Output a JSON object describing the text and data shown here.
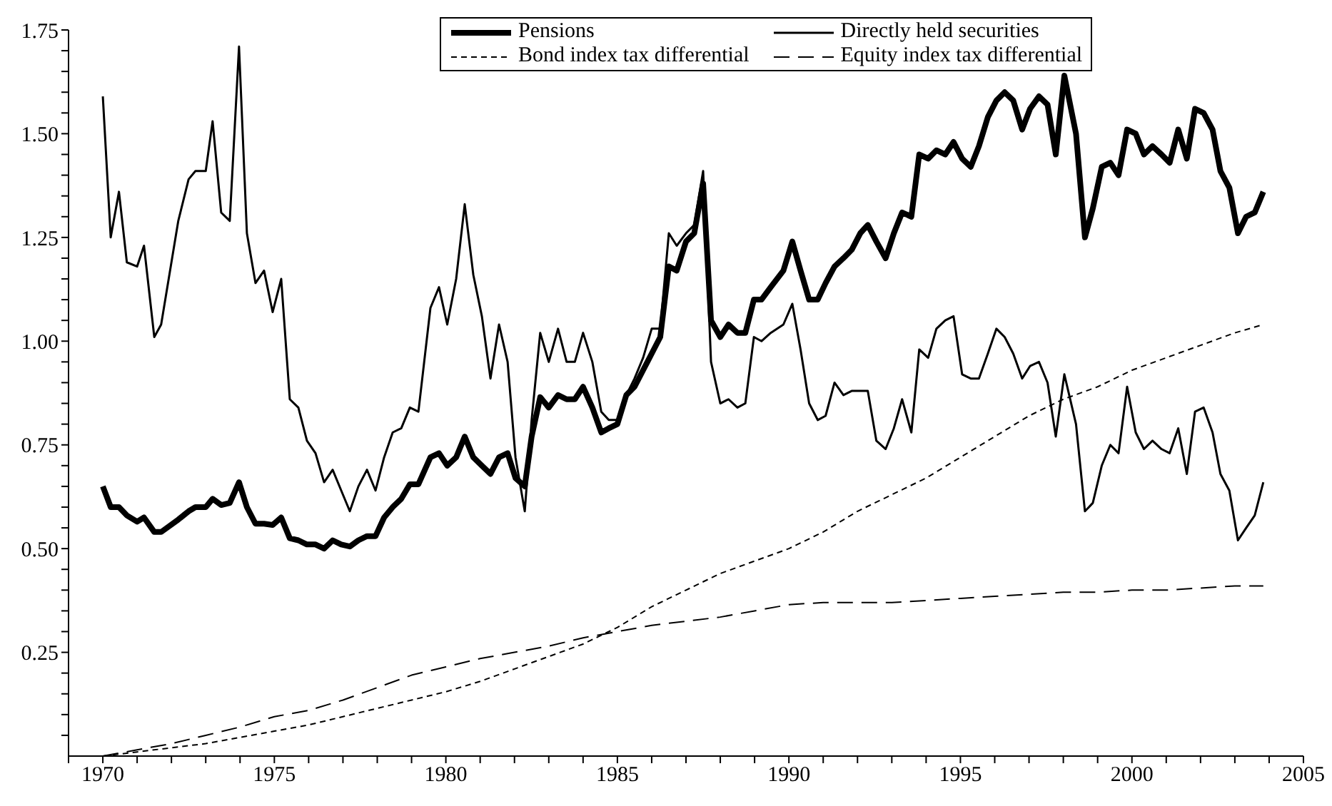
{
  "chart_data": {
    "type": "line",
    "xlim": [
      1969,
      2005
    ],
    "xticks": [
      {
        "value": 1969,
        "label": null
      },
      1970,
      {
        "value": 1971,
        "label": null
      },
      {
        "value": 1972,
        "label": null
      },
      {
        "value": 1973,
        "label": null
      },
      {
        "value": 1974,
        "label": null
      },
      1975,
      {
        "value": 1976,
        "label": null
      },
      {
        "value": 1977,
        "label": null
      },
      {
        "value": 1978,
        "label": null
      },
      {
        "value": 1979,
        "label": null
      },
      1980,
      {
        "value": 1981,
        "label": null
      },
      {
        "value": 1982,
        "label": null
      },
      {
        "value": 1983,
        "label": null
      },
      {
        "value": 1984,
        "label": null
      },
      1985,
      {
        "value": 1986,
        "label": null
      },
      {
        "value": 1987,
        "label": null
      },
      {
        "value": 1988,
        "label": null
      },
      {
        "value": 1989,
        "label": null
      },
      1990,
      {
        "value": 1991,
        "label": null
      },
      {
        "value": 1992,
        "label": null
      },
      {
        "value": 1993,
        "label": null
      },
      {
        "value": 1994,
        "label": null
      },
      1995,
      {
        "value": 1996,
        "label": null
      },
      {
        "value": 1997,
        "label": null
      },
      {
        "value": 1998,
        "label": null
      },
      {
        "value": 1999,
        "label": null
      },
      2000,
      {
        "value": 2001,
        "label": null
      },
      {
        "value": 2002,
        "label": null
      },
      {
        "value": 2003,
        "label": null
      },
      {
        "value": 2004,
        "label": null
      },
      2005
    ],
    "ylim": [
      0,
      1.75
    ],
    "yticks": [
      {
        "value": 0.05,
        "label": null
      },
      {
        "value": 0.1,
        "label": null
      },
      {
        "value": 0.15,
        "label": null
      },
      {
        "value": 0.2,
        "label": null
      },
      0.25,
      {
        "value": 0.3,
        "label": null
      },
      {
        "value": 0.35,
        "label": null
      },
      {
        "value": 0.4,
        "label": null
      },
      {
        "value": 0.45,
        "label": null
      },
      {
        "value": 0.5,
        "label": "0.50"
      },
      {
        "value": 0.55,
        "label": null
      },
      {
        "value": 0.6,
        "label": null
      },
      {
        "value": 0.65,
        "label": null
      },
      {
        "value": 0.7,
        "label": null
      },
      0.75,
      {
        "value": 0.8,
        "label": null
      },
      {
        "value": 0.85,
        "label": null
      },
      {
        "value": 0.9,
        "label": null
      },
      {
        "value": 0.95,
        "label": null
      },
      {
        "value": 1,
        "label": "1.00"
      },
      {
        "value": 1.05,
        "label": null
      },
      {
        "value": 1.1,
        "label": null
      },
      {
        "value": 1.15,
        "label": null
      },
      {
        "value": 1.2,
        "label": null
      },
      1.25,
      {
        "value": 1.3,
        "label": null
      },
      {
        "value": 1.35,
        "label": null
      },
      {
        "value": 1.4,
        "label": null
      },
      {
        "value": 1.45,
        "label": null
      },
      {
        "value": 1.5,
        "label": "1.50"
      },
      {
        "value": 1.55,
        "label": null
      },
      {
        "value": 1.6,
        "label": null
      },
      {
        "value": 1.65,
        "label": null
      },
      {
        "value": 1.7,
        "label": null
      },
      1.75
    ],
    "grid": false,
    "legend": "top",
    "marker": "none",
    "series": [
      {
        "name": "Pensions",
        "color": "#000000",
        "line_style": "solid",
        "x": [
          1970,
          1970.23,
          1970.47,
          1970.7,
          1971,
          1971.2,
          1971.5,
          1971.7,
          1972.2,
          1972.5,
          1972.7,
          1973,
          1973.2,
          1973.45,
          1973.7,
          1973.97,
          1974.2,
          1974.45,
          1974.7,
          1974.95,
          1975.2,
          1975.45,
          1975.7,
          1975.95,
          1976.2,
          1976.45,
          1976.7,
          1976.95,
          1977.2,
          1977.45,
          1977.7,
          1977.95,
          1978.2,
          1978.45,
          1978.7,
          1978.95,
          1979.2,
          1979.55,
          1979.8,
          1980.04,
          1980.3,
          1980.55,
          1980.8,
          1981.05,
          1981.3,
          1981.55,
          1981.8,
          1982.03,
          1982.3,
          1982.5,
          1982.75,
          1983,
          1983.27,
          1983.52,
          1983.76,
          1984,
          1984.27,
          1984.53,
          1984.75,
          1985,
          1985.26,
          1985.5,
          1985.75,
          1986,
          1986.25,
          1986.5,
          1986.73,
          1987,
          1987.24,
          1987.5,
          1987.73,
          1988,
          1988.24,
          1988.5,
          1988.73,
          1988.98,
          1989.2,
          1989.47,
          1989.84,
          1990.1,
          1990.34,
          1990.59,
          1990.84,
          1991.07,
          1991.33,
          1991.59,
          1991.83,
          1992.08,
          1992.3,
          1992.55,
          1992.82,
          1993.06,
          1993.3,
          1993.57,
          1993.8,
          1994.06,
          1994.3,
          1994.56,
          1994.8,
          1995.05,
          1995.3,
          1995.54,
          1995.8,
          1996.05,
          1996.29,
          1996.54,
          1996.8,
          1997.03,
          1997.29,
          1997.54,
          1997.78,
          1998.03,
          1998.37,
          1998.63,
          1998.86,
          1999.12,
          1999.37,
          1999.61,
          1999.86,
          2000.11,
          2000.35,
          2000.6,
          2000.86,
          2001.1,
          2001.35,
          2001.6,
          2001.84,
          2002.09,
          2002.35,
          2002.58,
          2002.84,
          2003.09,
          2003.33,
          2003.58,
          2003.83
        ],
        "values": [
          0.65,
          0.6,
          0.6,
          0.58,
          0.565,
          0.575,
          0.54,
          0.54,
          0.57,
          0.59,
          0.6,
          0.6,
          0.62,
          0.605,
          0.61,
          0.66,
          0.6,
          0.56,
          0.56,
          0.557,
          0.575,
          0.525,
          0.52,
          0.51,
          0.51,
          0.5,
          0.52,
          0.51,
          0.505,
          0.52,
          0.53,
          0.53,
          0.575,
          0.6,
          0.62,
          0.655,
          0.655,
          0.72,
          0.73,
          0.7,
          0.72,
          0.77,
          0.72,
          0.7,
          0.68,
          0.72,
          0.73,
          0.67,
          0.65,
          0.77,
          0.865,
          0.84,
          0.87,
          0.86,
          0.86,
          0.89,
          0.84,
          0.78,
          0.79,
          0.8,
          0.87,
          0.89,
          0.93,
          0.97,
          1.01,
          1.18,
          1.17,
          1.24,
          1.26,
          1.38,
          1.05,
          1.01,
          1.04,
          1.02,
          1.02,
          1.1,
          1.1,
          1.13,
          1.17,
          1.24,
          1.17,
          1.1,
          1.1,
          1.14,
          1.18,
          1.2,
          1.22,
          1.26,
          1.28,
          1.24,
          1.2,
          1.26,
          1.31,
          1.3,
          1.45,
          1.44,
          1.46,
          1.45,
          1.48,
          1.44,
          1.42,
          1.47,
          1.54,
          1.58,
          1.6,
          1.58,
          1.51,
          1.56,
          1.59,
          1.57,
          1.45,
          1.64,
          1.5,
          1.25,
          1.32,
          1.42,
          1.43,
          1.4,
          1.51,
          1.5,
          1.45,
          1.47,
          1.45,
          1.43,
          1.51,
          1.44,
          1.56,
          1.55,
          1.51,
          1.41,
          1.37,
          1.26,
          1.3,
          1.31,
          1.36
        ]
      },
      {
        "name": "Directly held securities",
        "color": "#000000",
        "line_style": "solid",
        "x": [
          1970,
          1970.23,
          1970.47,
          1970.7,
          1971,
          1971.2,
          1971.5,
          1971.7,
          1972.2,
          1972.5,
          1972.7,
          1973,
          1973.2,
          1973.45,
          1973.7,
          1973.97,
          1974.2,
          1974.45,
          1974.7,
          1974.95,
          1975.2,
          1975.45,
          1975.7,
          1975.95,
          1976.2,
          1976.45,
          1976.7,
          1976.95,
          1977.2,
          1977.45,
          1977.7,
          1977.95,
          1978.2,
          1978.45,
          1978.7,
          1978.95,
          1979.2,
          1979.55,
          1979.8,
          1980.04,
          1980.3,
          1980.55,
          1980.8,
          1981.05,
          1981.3,
          1981.55,
          1981.8,
          1982.03,
          1982.3,
          1982.5,
          1982.75,
          1983,
          1983.27,
          1983.52,
          1983.76,
          1984,
          1984.27,
          1984.53,
          1984.75,
          1985,
          1985.26,
          1985.5,
          1985.75,
          1986,
          1986.25,
          1986.5,
          1986.73,
          1987,
          1987.24,
          1987.5,
          1987.73,
          1988,
          1988.24,
          1988.5,
          1988.73,
          1988.98,
          1989.2,
          1989.47,
          1989.84,
          1990.1,
          1990.34,
          1990.59,
          1990.84,
          1991.07,
          1991.33,
          1991.59,
          1991.83,
          1992.08,
          1992.3,
          1992.55,
          1992.82,
          1993.06,
          1993.3,
          1993.57,
          1993.8,
          1994.06,
          1994.3,
          1994.56,
          1994.8,
          1995.05,
          1995.3,
          1995.54,
          1995.8,
          1996.05,
          1996.29,
          1996.54,
          1996.8,
          1997.03,
          1997.29,
          1997.54,
          1997.78,
          1998.03,
          1998.37,
          1998.63,
          1998.86,
          1999.12,
          1999.37,
          1999.61,
          1999.86,
          2000.11,
          2000.35,
          2000.6,
          2000.86,
          2001.1,
          2001.35,
          2001.6,
          2001.84,
          2002.09,
          2002.35,
          2002.58,
          2002.84,
          2003.09,
          2003.33,
          2003.58,
          2003.83
        ],
        "values": [
          1.59,
          1.25,
          1.36,
          1.19,
          1.18,
          1.23,
          1.01,
          1.04,
          1.29,
          1.39,
          1.41,
          1.41,
          1.53,
          1.31,
          1.29,
          1.71,
          1.26,
          1.14,
          1.17,
          1.07,
          1.15,
          0.86,
          0.84,
          0.76,
          0.73,
          0.66,
          0.69,
          0.64,
          0.59,
          0.65,
          0.69,
          0.64,
          0.72,
          0.78,
          0.79,
          0.84,
          0.83,
          1.08,
          1.13,
          1.04,
          1.15,
          1.33,
          1.16,
          1.06,
          0.91,
          1.04,
          0.95,
          0.72,
          0.59,
          0.81,
          1.02,
          0.95,
          1.03,
          0.95,
          0.95,
          1.02,
          0.95,
          0.83,
          0.81,
          0.81,
          0.87,
          0.91,
          0.96,
          1.03,
          1.03,
          1.26,
          1.23,
          1.26,
          1.28,
          1.41,
          0.95,
          0.85,
          0.86,
          0.84,
          0.85,
          1.01,
          1.0,
          1.02,
          1.04,
          1.09,
          0.98,
          0.85,
          0.81,
          0.82,
          0.9,
          0.87,
          0.88,
          0.88,
          0.88,
          0.76,
          0.74,
          0.79,
          0.86,
          0.78,
          0.98,
          0.96,
          1.03,
          1.05,
          1.06,
          0.92,
          0.91,
          0.91,
          0.97,
          1.03,
          1.01,
          0.97,
          0.91,
          0.94,
          0.95,
          0.9,
          0.77,
          0.92,
          0.8,
          0.59,
          0.61,
          0.7,
          0.75,
          0.73,
          0.89,
          0.78,
          0.74,
          0.76,
          0.74,
          0.73,
          0.79,
          0.68,
          0.83,
          0.84,
          0.78,
          0.68,
          0.64,
          0.52,
          0.55,
          0.58,
          0.66
        ]
      },
      {
        "name": "Bond index tax differential",
        "color": "#000000",
        "line_style": "dotted",
        "x": [
          1970,
          1971,
          1972,
          1973,
          1974,
          1975,
          1976,
          1977,
          1978,
          1979,
          1980,
          1981,
          1982,
          1983,
          1984,
          1985,
          1986,
          1987,
          1988,
          1989,
          1990,
          1991,
          1992,
          1993,
          1994,
          1995,
          1996,
          1997,
          1998,
          1999,
          2000,
          2001,
          2002,
          2003,
          2003.83
        ],
        "values": [
          0,
          0.01,
          0.02,
          0.03,
          0.045,
          0.06,
          0.075,
          0.095,
          0.115,
          0.135,
          0.155,
          0.18,
          0.21,
          0.24,
          0.27,
          0.31,
          0.36,
          0.4,
          0.44,
          0.47,
          0.5,
          0.54,
          0.59,
          0.63,
          0.67,
          0.72,
          0.77,
          0.82,
          0.86,
          0.89,
          0.93,
          0.96,
          0.99,
          1.02,
          1.04
        ]
      },
      {
        "name": "Equity index tax differential",
        "color": "#000000",
        "line_style": "dashed",
        "x": [
          1970,
          1971,
          1972,
          1973,
          1974,
          1975,
          1976,
          1977,
          1978,
          1979,
          1980,
          1981,
          1982,
          1983,
          1984,
          1985,
          1986,
          1987,
          1988,
          1989,
          1990,
          1991,
          1992,
          1993,
          1994,
          1995,
          1996,
          1997,
          1998,
          1999,
          2000,
          2001,
          2002,
          2003,
          2003.83
        ],
        "values": [
          0,
          0.015,
          0.03,
          0.05,
          0.07,
          0.095,
          0.11,
          0.135,
          0.165,
          0.195,
          0.215,
          0.235,
          0.25,
          0.265,
          0.285,
          0.3,
          0.315,
          0.325,
          0.335,
          0.35,
          0.365,
          0.37,
          0.37,
          0.37,
          0.375,
          0.38,
          0.385,
          0.39,
          0.395,
          0.395,
          0.4,
          0.4,
          0.405,
          0.41,
          0.41
        ]
      }
    ]
  }
}
